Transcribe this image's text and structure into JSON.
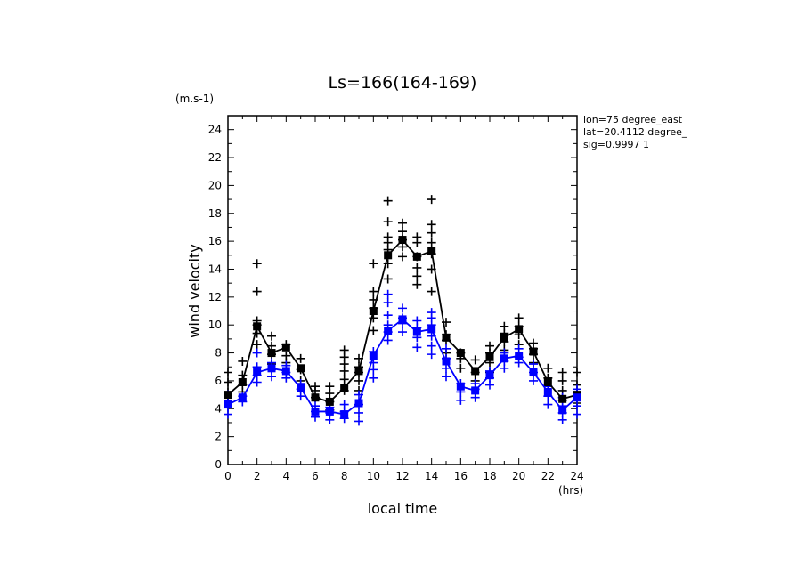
{
  "chart_data": {
    "type": "line",
    "title": "Ls=166(164-169)",
    "xlabel": "local time",
    "ylabel": "wind velocity",
    "x_unit": "(hrs)",
    "y_unit": "(m.s-1)",
    "xlim": [
      0,
      24
    ],
    "ylim": [
      0,
      25
    ],
    "x_ticks": [
      "0",
      "2",
      "4",
      "6",
      "8",
      "10",
      "12",
      "14",
      "16",
      "18",
      "20",
      "22",
      "24"
    ],
    "y_ticks": [
      "0",
      "2",
      "4",
      "6",
      "8",
      "10",
      "12",
      "14",
      "16",
      "18",
      "20",
      "22",
      "24"
    ],
    "grid": false,
    "info_lines": [
      "lon=75 degree_east",
      "lat=20.4112 degree_",
      "sig=0.9997 1"
    ],
    "x": [
      0,
      1,
      2,
      3,
      4,
      5,
      6,
      7,
      8,
      9,
      10,
      11,
      12,
      13,
      14,
      15,
      16,
      17,
      18,
      19,
      20,
      21,
      22,
      23,
      24
    ],
    "series": [
      {
        "color": "#000000",
        "marker": "square",
        "line": true,
        "values": [
          5.0,
          5.9,
          9.9,
          8.0,
          8.4,
          6.9,
          4.8,
          4.5,
          5.5,
          6.7,
          11.0,
          15.0,
          16.1,
          14.9,
          15.3,
          9.1,
          8.0,
          6.7,
          7.7,
          9.1,
          9.7,
          8.1,
          5.9,
          4.7,
          5.0
        ]
      },
      {
        "color": "#0000ff",
        "marker": "square",
        "line": true,
        "values": [
          4.3,
          4.8,
          6.6,
          6.9,
          6.7,
          5.5,
          3.8,
          3.8,
          3.6,
          4.4,
          7.8,
          9.6,
          10.4,
          9.5,
          9.7,
          7.4,
          5.6,
          5.3,
          6.4,
          7.6,
          7.8,
          6.6,
          5.2,
          3.9,
          4.8
        ]
      },
      {
        "color": "#000000",
        "marker": "plus",
        "line": false,
        "points": [
          [
            0,
            4.5
          ],
          [
            0,
            5.2
          ],
          [
            0,
            5.9
          ],
          [
            0,
            6.6
          ],
          [
            1,
            5.2
          ],
          [
            1,
            5.7
          ],
          [
            1,
            6.4
          ],
          [
            1,
            7.4
          ],
          [
            2,
            8.6
          ],
          [
            2,
            9.4
          ],
          [
            2,
            10.0
          ],
          [
            2,
            10.3
          ],
          [
            2,
            12.4
          ],
          [
            2,
            14.4
          ],
          [
            3,
            7.2
          ],
          [
            3,
            7.9
          ],
          [
            3,
            8.5
          ],
          [
            3,
            9.2
          ],
          [
            4,
            7.3
          ],
          [
            4,
            7.8
          ],
          [
            4,
            8.6
          ],
          [
            5,
            6.0
          ],
          [
            5,
            6.8
          ],
          [
            5,
            7.6
          ],
          [
            6,
            4.8
          ],
          [
            6,
            5.3
          ],
          [
            6,
            5.6
          ],
          [
            7,
            3.9
          ],
          [
            7,
            4.5
          ],
          [
            7,
            5.1
          ],
          [
            7,
            5.6
          ],
          [
            8,
            5.3
          ],
          [
            8,
            6.1
          ],
          [
            8,
            6.7
          ],
          [
            8,
            7.2
          ],
          [
            8,
            7.7
          ],
          [
            8,
            8.2
          ],
          [
            9,
            5.3
          ],
          [
            9,
            6.0
          ],
          [
            9,
            6.6
          ],
          [
            9,
            7.0
          ],
          [
            9,
            7.6
          ],
          [
            10,
            9.6
          ],
          [
            10,
            10.5
          ],
          [
            10,
            11.2
          ],
          [
            10,
            11.8
          ],
          [
            10,
            12.4
          ],
          [
            10,
            14.4
          ],
          [
            11,
            13.3
          ],
          [
            11,
            14.4
          ],
          [
            11,
            15.4
          ],
          [
            11,
            15.9
          ],
          [
            11,
            16.3
          ],
          [
            11,
            17.4
          ],
          [
            11,
            18.9
          ],
          [
            12,
            14.9
          ],
          [
            12,
            15.6
          ],
          [
            12,
            16.1
          ],
          [
            12,
            16.7
          ],
          [
            12,
            17.3
          ],
          [
            13,
            12.9
          ],
          [
            13,
            13.5
          ],
          [
            13,
            14.1
          ],
          [
            13,
            14.9
          ],
          [
            13,
            15.9
          ],
          [
            13,
            16.3
          ],
          [
            14,
            12.4
          ],
          [
            14,
            14.0
          ],
          [
            14,
            15.1
          ],
          [
            14,
            15.9
          ],
          [
            14,
            16.6
          ],
          [
            14,
            17.2
          ],
          [
            14,
            19.0
          ],
          [
            15,
            8.0
          ],
          [
            15,
            8.9
          ],
          [
            15,
            9.3
          ],
          [
            15,
            10.2
          ],
          [
            16,
            6.9
          ],
          [
            16,
            7.6
          ],
          [
            16,
            8.0
          ],
          [
            17,
            6.0
          ],
          [
            17,
            6.6
          ],
          [
            17,
            7.5
          ],
          [
            18,
            6.6
          ],
          [
            18,
            7.3
          ],
          [
            18,
            8.0
          ],
          [
            18,
            8.5
          ],
          [
            19,
            8.2
          ],
          [
            19,
            8.8
          ],
          [
            19,
            9.4
          ],
          [
            19,
            9.9
          ],
          [
            20,
            8.6
          ],
          [
            20,
            9.3
          ],
          [
            20,
            9.9
          ],
          [
            20,
            10.5
          ],
          [
            21,
            7.3
          ],
          [
            21,
            7.9
          ],
          [
            21,
            8.3
          ],
          [
            21,
            8.7
          ],
          [
            22,
            5.6
          ],
          [
            22,
            6.2
          ],
          [
            22,
            6.9
          ],
          [
            23,
            4.6
          ],
          [
            23,
            5.3
          ],
          [
            23,
            6.0
          ],
          [
            23,
            6.6
          ],
          [
            24,
            4.4
          ],
          [
            24,
            5.1
          ],
          [
            24,
            5.7
          ],
          [
            24,
            6.6
          ]
        ]
      },
      {
        "color": "#0000ff",
        "marker": "plus",
        "line": false,
        "points": [
          [
            0,
            3.6
          ],
          [
            0,
            4.1
          ],
          [
            0,
            4.6
          ],
          [
            0,
            5.0
          ],
          [
            1,
            4.5
          ],
          [
            1,
            4.9
          ],
          [
            2,
            5.9
          ],
          [
            2,
            6.4
          ],
          [
            2,
            7.0
          ],
          [
            2,
            8.0
          ],
          [
            3,
            6.3
          ],
          [
            3,
            6.8
          ],
          [
            3,
            7.3
          ],
          [
            4,
            6.2
          ],
          [
            4,
            6.6
          ],
          [
            4,
            7.1
          ],
          [
            5,
            4.9
          ],
          [
            5,
            5.4
          ],
          [
            5,
            5.8
          ],
          [
            6,
            3.4
          ],
          [
            6,
            3.8
          ],
          [
            6,
            4.2
          ],
          [
            7,
            3.2
          ],
          [
            7,
            3.7
          ],
          [
            7,
            4.1
          ],
          [
            8,
            3.3
          ],
          [
            8,
            3.8
          ],
          [
            8,
            4.3
          ],
          [
            9,
            3.1
          ],
          [
            9,
            3.7
          ],
          [
            9,
            4.3
          ],
          [
            9,
            5.0
          ],
          [
            10,
            6.2
          ],
          [
            10,
            6.8
          ],
          [
            10,
            7.3
          ],
          [
            10,
            8.1
          ],
          [
            11,
            8.9
          ],
          [
            11,
            9.5
          ],
          [
            11,
            10.0
          ],
          [
            11,
            10.7
          ],
          [
            11,
            11.6
          ],
          [
            11,
            12.2
          ],
          [
            12,
            9.5
          ],
          [
            12,
            10.1
          ],
          [
            12,
            10.5
          ],
          [
            12,
            11.2
          ],
          [
            13,
            8.4
          ],
          [
            13,
            9.1
          ],
          [
            13,
            9.8
          ],
          [
            13,
            10.3
          ],
          [
            14,
            7.9
          ],
          [
            14,
            8.5
          ],
          [
            14,
            9.2
          ],
          [
            14,
            10.0
          ],
          [
            14,
            10.5
          ],
          [
            14,
            10.9
          ],
          [
            15,
            6.3
          ],
          [
            15,
            6.9
          ],
          [
            15,
            7.6
          ],
          [
            15,
            8.3
          ],
          [
            16,
            4.6
          ],
          [
            16,
            5.2
          ],
          [
            16,
            5.8
          ],
          [
            17,
            4.8
          ],
          [
            17,
            5.4
          ],
          [
            17,
            5.8
          ],
          [
            18,
            5.7
          ],
          [
            18,
            6.2
          ],
          [
            18,
            6.7
          ],
          [
            19,
            6.9
          ],
          [
            19,
            7.4
          ],
          [
            19,
            8.0
          ],
          [
            20,
            7.3
          ],
          [
            20,
            7.7
          ],
          [
            20,
            8.3
          ],
          [
            21,
            6.0
          ],
          [
            21,
            6.6
          ],
          [
            21,
            7.2
          ],
          [
            22,
            4.3
          ],
          [
            22,
            4.9
          ],
          [
            22,
            5.6
          ],
          [
            23,
            3.2
          ],
          [
            23,
            3.7
          ],
          [
            23,
            4.2
          ],
          [
            23,
            4.8
          ],
          [
            24,
            3.6
          ],
          [
            24,
            4.2
          ],
          [
            24,
            4.8
          ],
          [
            24,
            5.4
          ]
        ]
      }
    ]
  }
}
